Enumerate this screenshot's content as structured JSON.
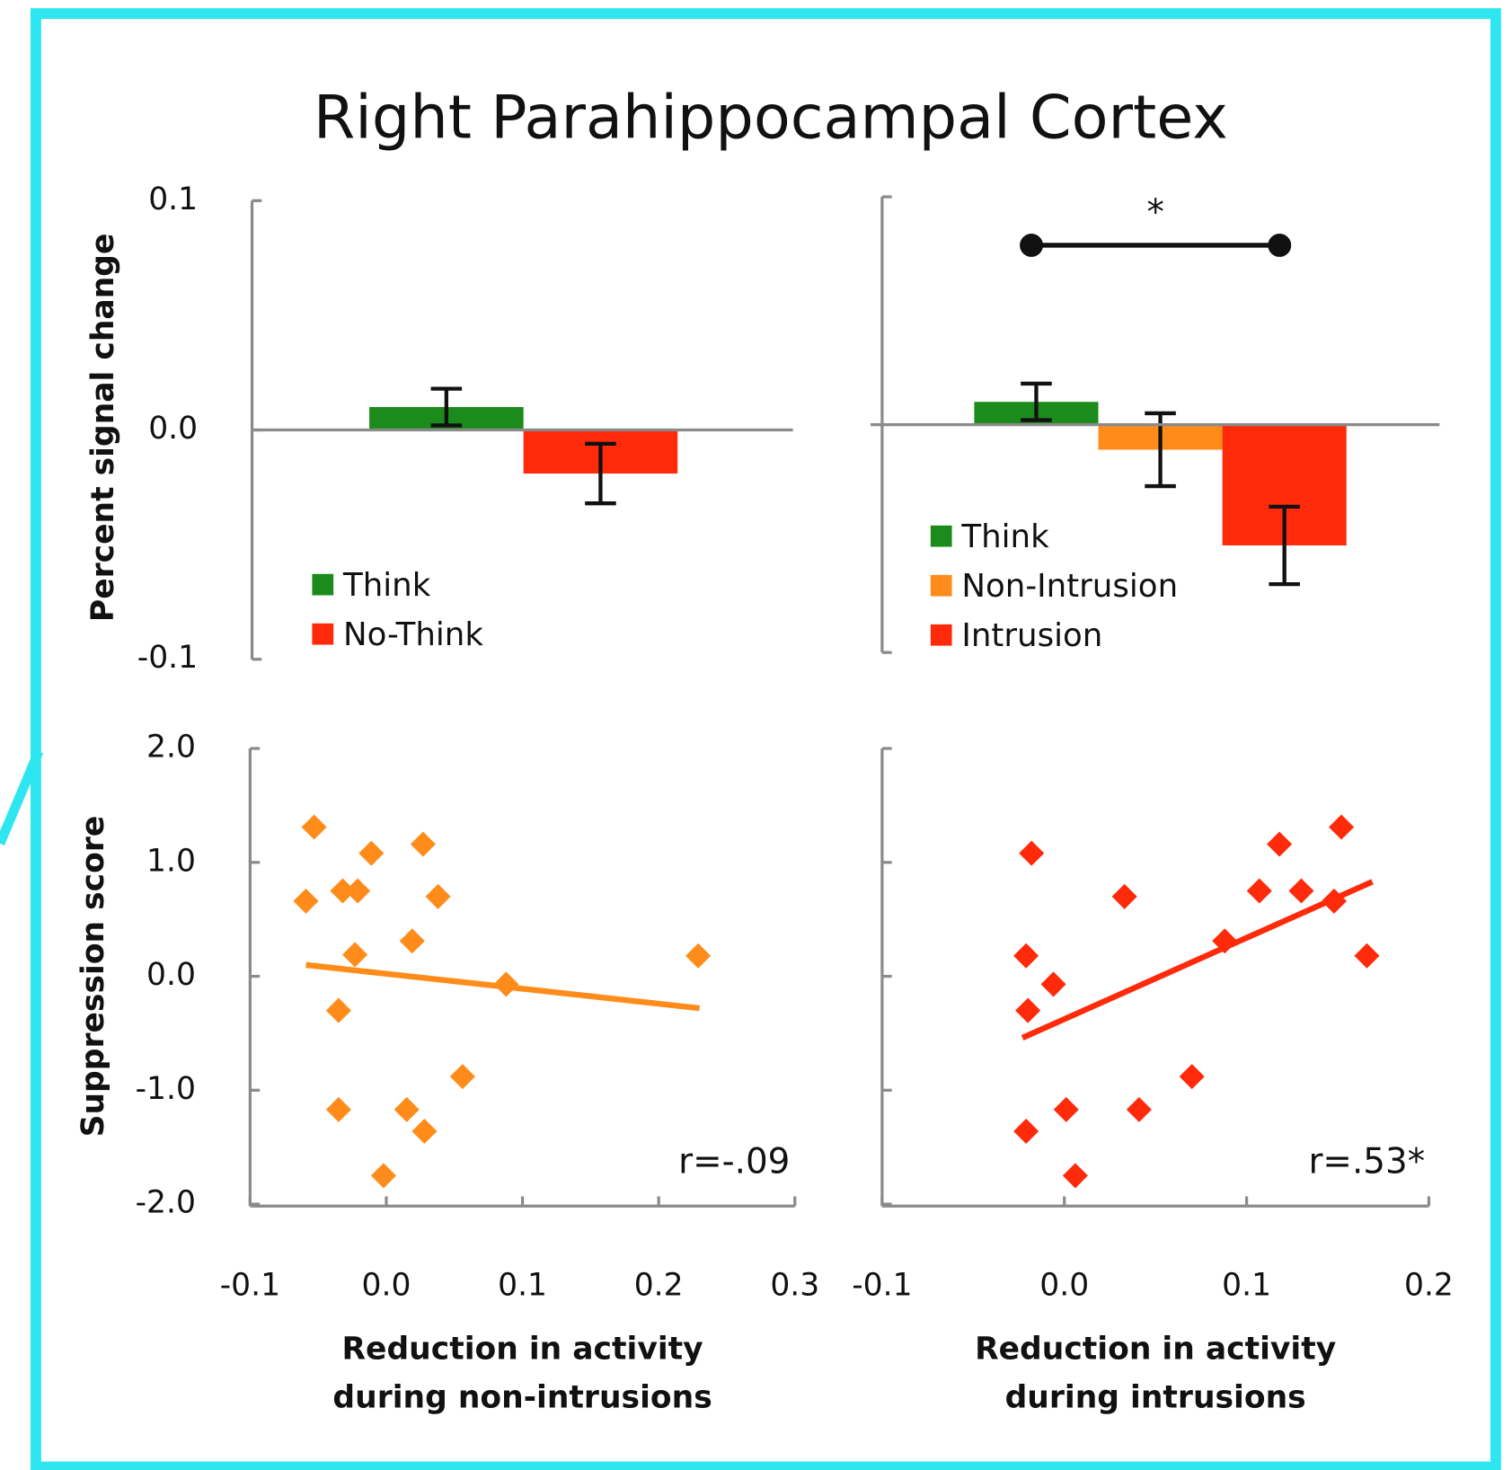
{
  "title": "Right Parahippocampal Cortex",
  "chart_data": [
    {
      "type": "bar",
      "ylabel": "Percent signal change",
      "ylim": [
        -0.1,
        0.1
      ],
      "yticks": [
        0.1,
        {
          "value": 0,
          "label": "0.0"
        },
        -0.1
      ],
      "series": [
        {
          "name": "Think",
          "color": "#1b8c1b",
          "values": [
            0.01
          ],
          "errors": [
            0.008
          ]
        },
        {
          "name": "No-Think",
          "color": "#ff2a0a",
          "values": [
            -0.019
          ],
          "errors": [
            0.013
          ]
        }
      ]
    },
    {
      "type": "bar",
      "annotation": "*",
      "ylim": [
        -0.1,
        0.1
      ],
      "yticks": [
        0.1,
        -0.1
      ],
      "series": [
        {
          "name": "Think",
          "color": "#1b8c1b",
          "values": [
            0.01
          ],
          "errors": [
            0.008
          ]
        },
        {
          "name": "Non-Intrusion",
          "color": "#ff8c1a",
          "values": [
            -0.011
          ],
          "errors": [
            0.016
          ]
        },
        {
          "name": "Intrusion",
          "color": "#ff2a0a",
          "values": [
            -0.053
          ],
          "errors": [
            0.017
          ]
        }
      ]
    },
    {
      "type": "scatter",
      "ylabel": "Suppression score",
      "xlabel": [
        "Reduction in activity",
        "during non-intrusions"
      ],
      "annotation": "r=-.09",
      "xlim": [
        -0.1,
        0.3
      ],
      "xticks": [
        -0.1,
        {
          "value": 0,
          "label": "0.0"
        },
        0.1,
        0.2,
        0.3
      ],
      "ylim": [
        -2,
        2
      ],
      "yticks": [
        {
          "value": 2,
          "label": "2.0"
        },
        {
          "value": 1,
          "label": "1.0"
        },
        {
          "value": 0,
          "label": "0.0"
        },
        {
          "value": -1,
          "label": "-1.0"
        },
        {
          "value": -2,
          "label": "-2.0"
        }
      ],
      "series": [
        {
          "color": "#ff8c1a",
          "x": [
            -0.053,
            -0.059,
            -0.032,
            -0.021,
            -0.011,
            0.027,
            0.038,
            -0.023,
            0.019,
            -0.035,
            0.088,
            0.056,
            -0.035,
            0.015,
            0.028,
            -0.002,
            0.229
          ],
          "values": [
            1.31,
            0.66,
            0.75,
            0.75,
            1.08,
            1.16,
            0.7,
            0.19,
            0.31,
            -0.3,
            -0.07,
            -0.88,
            -1.17,
            -1.17,
            -1.36,
            -1.75,
            0.18
          ]
        }
      ],
      "fit": {
        "color": "#ff8c1a",
        "x": [
          -0.059,
          0.23
        ],
        "values": [
          0.1,
          -0.28
        ]
      }
    },
    {
      "type": "scatter",
      "xlabel": [
        "Reduction in activity",
        "during intrusions"
      ],
      "annotation": "r=.53*",
      "xlim": [
        -0.1,
        0.2
      ],
      "xticks": [
        -0.1,
        {
          "value": 0,
          "label": "0.0"
        },
        0.1,
        0.2
      ],
      "ylim": [
        -2,
        2
      ],
      "yticks": [
        2,
        1,
        0,
        -1,
        -2
      ],
      "series": [
        {
          "color": "#ff2a0a",
          "x": [
            -0.018,
            0.033,
            -0.021,
            -0.006,
            -0.02,
            0.088,
            0.107,
            0.118,
            0.13,
            0.152,
            0.148,
            0.166,
            0.07,
            0.041,
            0.001,
            -0.021,
            0.006
          ],
          "values": [
            1.08,
            0.7,
            0.18,
            -0.07,
            -0.3,
            0.31,
            0.75,
            1.16,
            0.75,
            1.31,
            0.66,
            0.18,
            -0.88,
            -1.17,
            -1.17,
            -1.36,
            -1.75
          ]
        }
      ],
      "fit": {
        "color": "#ff2a0a",
        "x": [
          -0.023,
          0.169
        ],
        "values": [
          -0.54,
          0.83
        ]
      }
    }
  ]
}
